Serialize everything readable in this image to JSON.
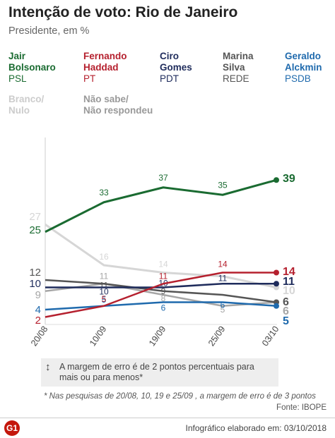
{
  "header": {
    "title": "Intenção de voto: Rio de Janeiro",
    "subtitle": "Presidente, em %"
  },
  "legend": [
    {
      "name": "Jair Bolsonaro",
      "name_lines": [
        "Jair",
        "Bolsonaro"
      ],
      "party": "PSL",
      "color": "#1a6b31"
    },
    {
      "name": "Fernando Haddad",
      "name_lines": [
        "Fernando",
        "Haddad"
      ],
      "party": "PT",
      "color": "#b5202e"
    },
    {
      "name": "Ciro Gomes",
      "name_lines": [
        "Ciro",
        "Gomes"
      ],
      "party": "PDT",
      "color": "#1f2c5c"
    },
    {
      "name": "Marina Silva",
      "name_lines": [
        "Marina",
        "Silva"
      ],
      "party": "REDE",
      "color": "#555555"
    },
    {
      "name": "Geraldo Alckmin",
      "name_lines": [
        "Geraldo",
        "Alckmin"
      ],
      "party": "PSDB",
      "color": "#1f6aad"
    },
    {
      "name": "Branco/Nulo",
      "name_lines": [
        "Branco/",
        "Nulo"
      ],
      "party": "",
      "color": "#cccccc"
    },
    {
      "name": "Não sabe/Não respondeu",
      "name_lines": [
        "Não sabe/",
        "Não respondeu"
      ],
      "party": "",
      "color": "#999999"
    }
  ],
  "chart_data": {
    "type": "line",
    "title": "Intenção de voto: Rio de Janeiro",
    "subtitle": "Presidente, em %",
    "categories": [
      "20/08",
      "10/09",
      "19/09",
      "25/09",
      "03/10"
    ],
    "ylim": [
      0,
      45
    ],
    "grid": false,
    "series": [
      {
        "name": "Branco/Nulo",
        "color": "#d6d6d6",
        "values": [
          27,
          16,
          14,
          13,
          10
        ],
        "labels": [
          "27",
          "16",
          "14",
          "",
          "10"
        ]
      },
      {
        "name": "Não sabe/Não respondeu",
        "color": "#a6a6a6",
        "values": [
          9,
          11,
          8,
          5,
          6
        ],
        "labels": [
          "9",
          "11",
          "8",
          "5",
          "6"
        ]
      },
      {
        "name": "Marina Silva",
        "color": "#555555",
        "values": [
          12,
          11,
          9,
          8,
          6
        ],
        "labels": [
          "12",
          "11",
          "9",
          "",
          "6"
        ]
      },
      {
        "name": "Geraldo Alckmin",
        "color": "#1f6aad",
        "values": [
          4,
          5,
          6,
          6,
          5
        ],
        "labels": [
          "4",
          "5",
          "6",
          "6",
          "5"
        ]
      },
      {
        "name": "Ciro Gomes",
        "color": "#1f2c5c",
        "values": [
          10,
          10,
          10,
          11,
          11
        ],
        "labels": [
          "10",
          "10",
          "10",
          "11",
          "11"
        ]
      },
      {
        "name": "Fernando Haddad",
        "color": "#b5202e",
        "values": [
          2,
          5,
          11,
          14,
          14
        ],
        "labels": [
          "2",
          "5",
          "11",
          "14",
          "14"
        ]
      },
      {
        "name": "Jair Bolsonaro",
        "color": "#1a6b31",
        "values": [
          25,
          33,
          37,
          35,
          39
        ],
        "labels": [
          "25",
          "33",
          "37",
          "35",
          "39"
        ]
      }
    ]
  },
  "note": {
    "icon": "up-down-arrow-icon",
    "text": "A margem de erro é de 2 pontos percentuais para mais ou para menos*"
  },
  "footnote": "* Nas pesquisas de 20/08, 10, 19 e 25/09 , a margem de erro é de 3 pontos",
  "source": "Fonte: IBOPE",
  "footer": {
    "logo_text": "G1",
    "credit": "Infográfico elaborado em: 03/10/2018"
  }
}
